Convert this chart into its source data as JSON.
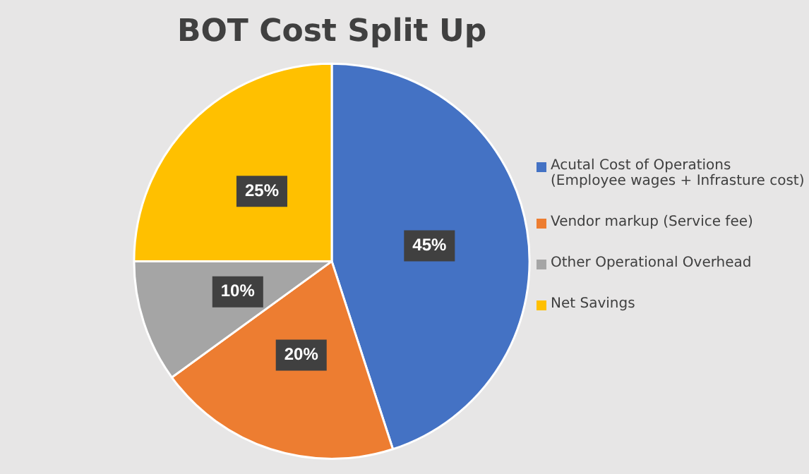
{
  "chart_data": {
    "type": "pie",
    "title": "BOT Cost Split Up",
    "categories": [
      "Acutal Cost of Operations (Employee wages + Infrasture cost)",
      "Vendor markup (Service fee)",
      "Other Operational Overhead",
      "Net Savings"
    ],
    "values": [
      45,
      20,
      10,
      25
    ],
    "colors": [
      "#4472c4",
      "#ed7d31",
      "#a5a5a5",
      "#ffc000"
    ],
    "value_labels": [
      "45%",
      "20%",
      "10%",
      "25%"
    ],
    "legend": "right"
  }
}
